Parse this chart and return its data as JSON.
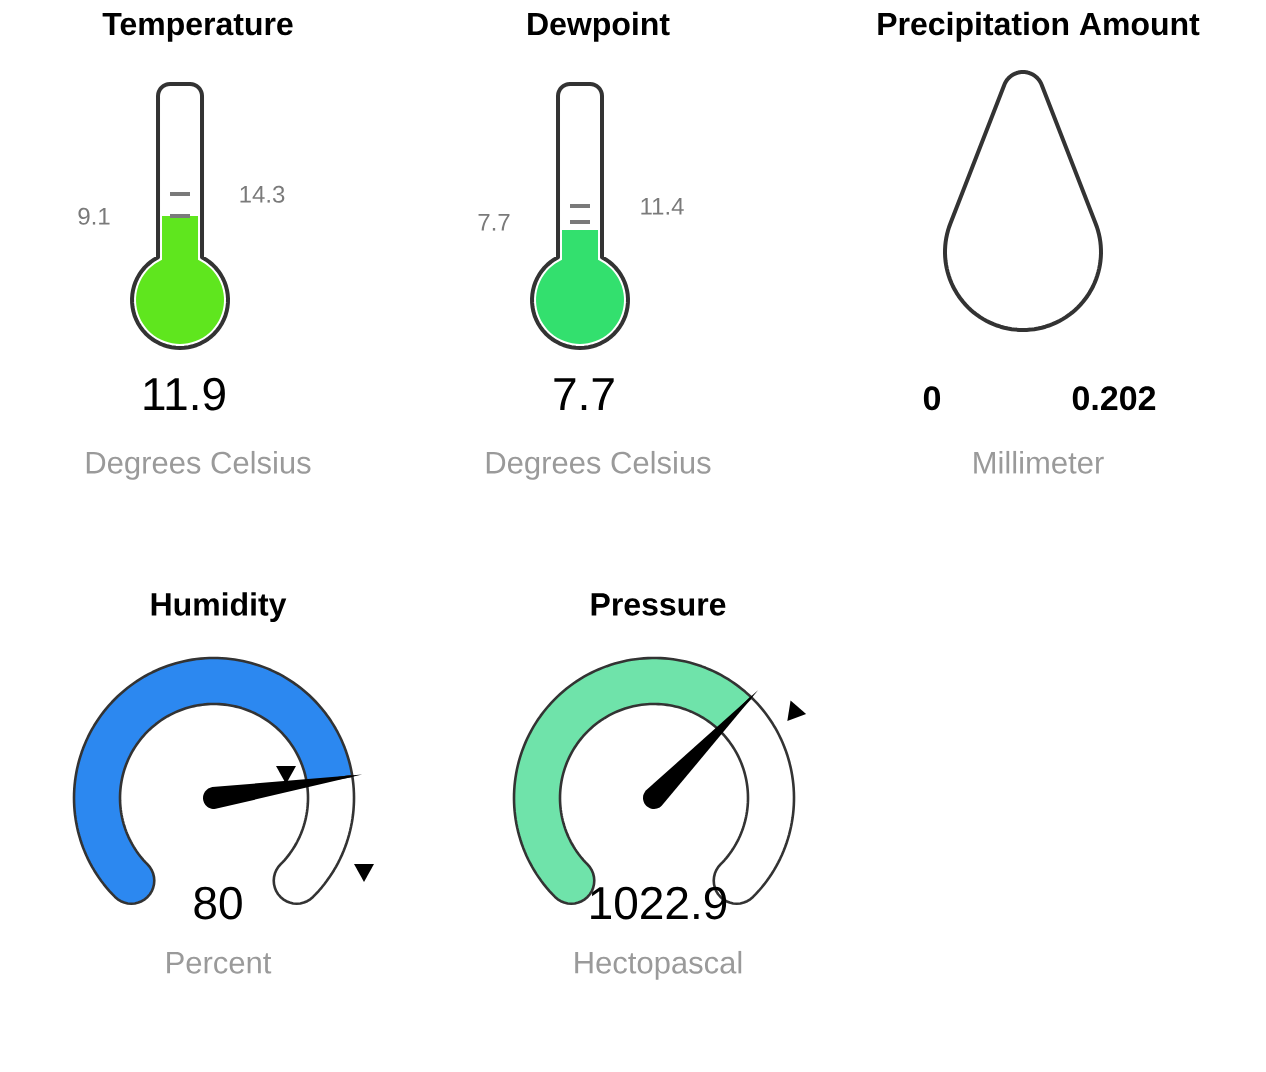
{
  "chart_data": [
    {
      "type": "other",
      "title": "Temperature",
      "values": [
        11.9
      ],
      "data_labels": true,
      "color": "#5fe61e",
      "xlabel": "Degrees Celsius",
      "annotations": [
        "9.1",
        "14.3"
      ]
    },
    {
      "type": "other",
      "title": "Dewpoint",
      "values": [
        7.7
      ],
      "data_labels": true,
      "color": "#33e06e",
      "xlabel": "Degrees Celsius",
      "annotations": [
        "7.7",
        "11.4"
      ]
    },
    {
      "type": "other",
      "title": "Precipitation Amount",
      "values": [
        0,
        0.202
      ],
      "data_labels": true,
      "xlabel": "Millimeter"
    },
    {
      "type": "other",
      "title": "Humidity",
      "values": [
        80
      ],
      "data_labels": true,
      "color": "#2c88f0",
      "xlabel": "Percent"
    },
    {
      "type": "other",
      "title": "Pressure",
      "values": [
        1022.9
      ],
      "data_labels": true,
      "color": "#6fe3aa",
      "xlabel": "Hectopascal"
    }
  ]
}
